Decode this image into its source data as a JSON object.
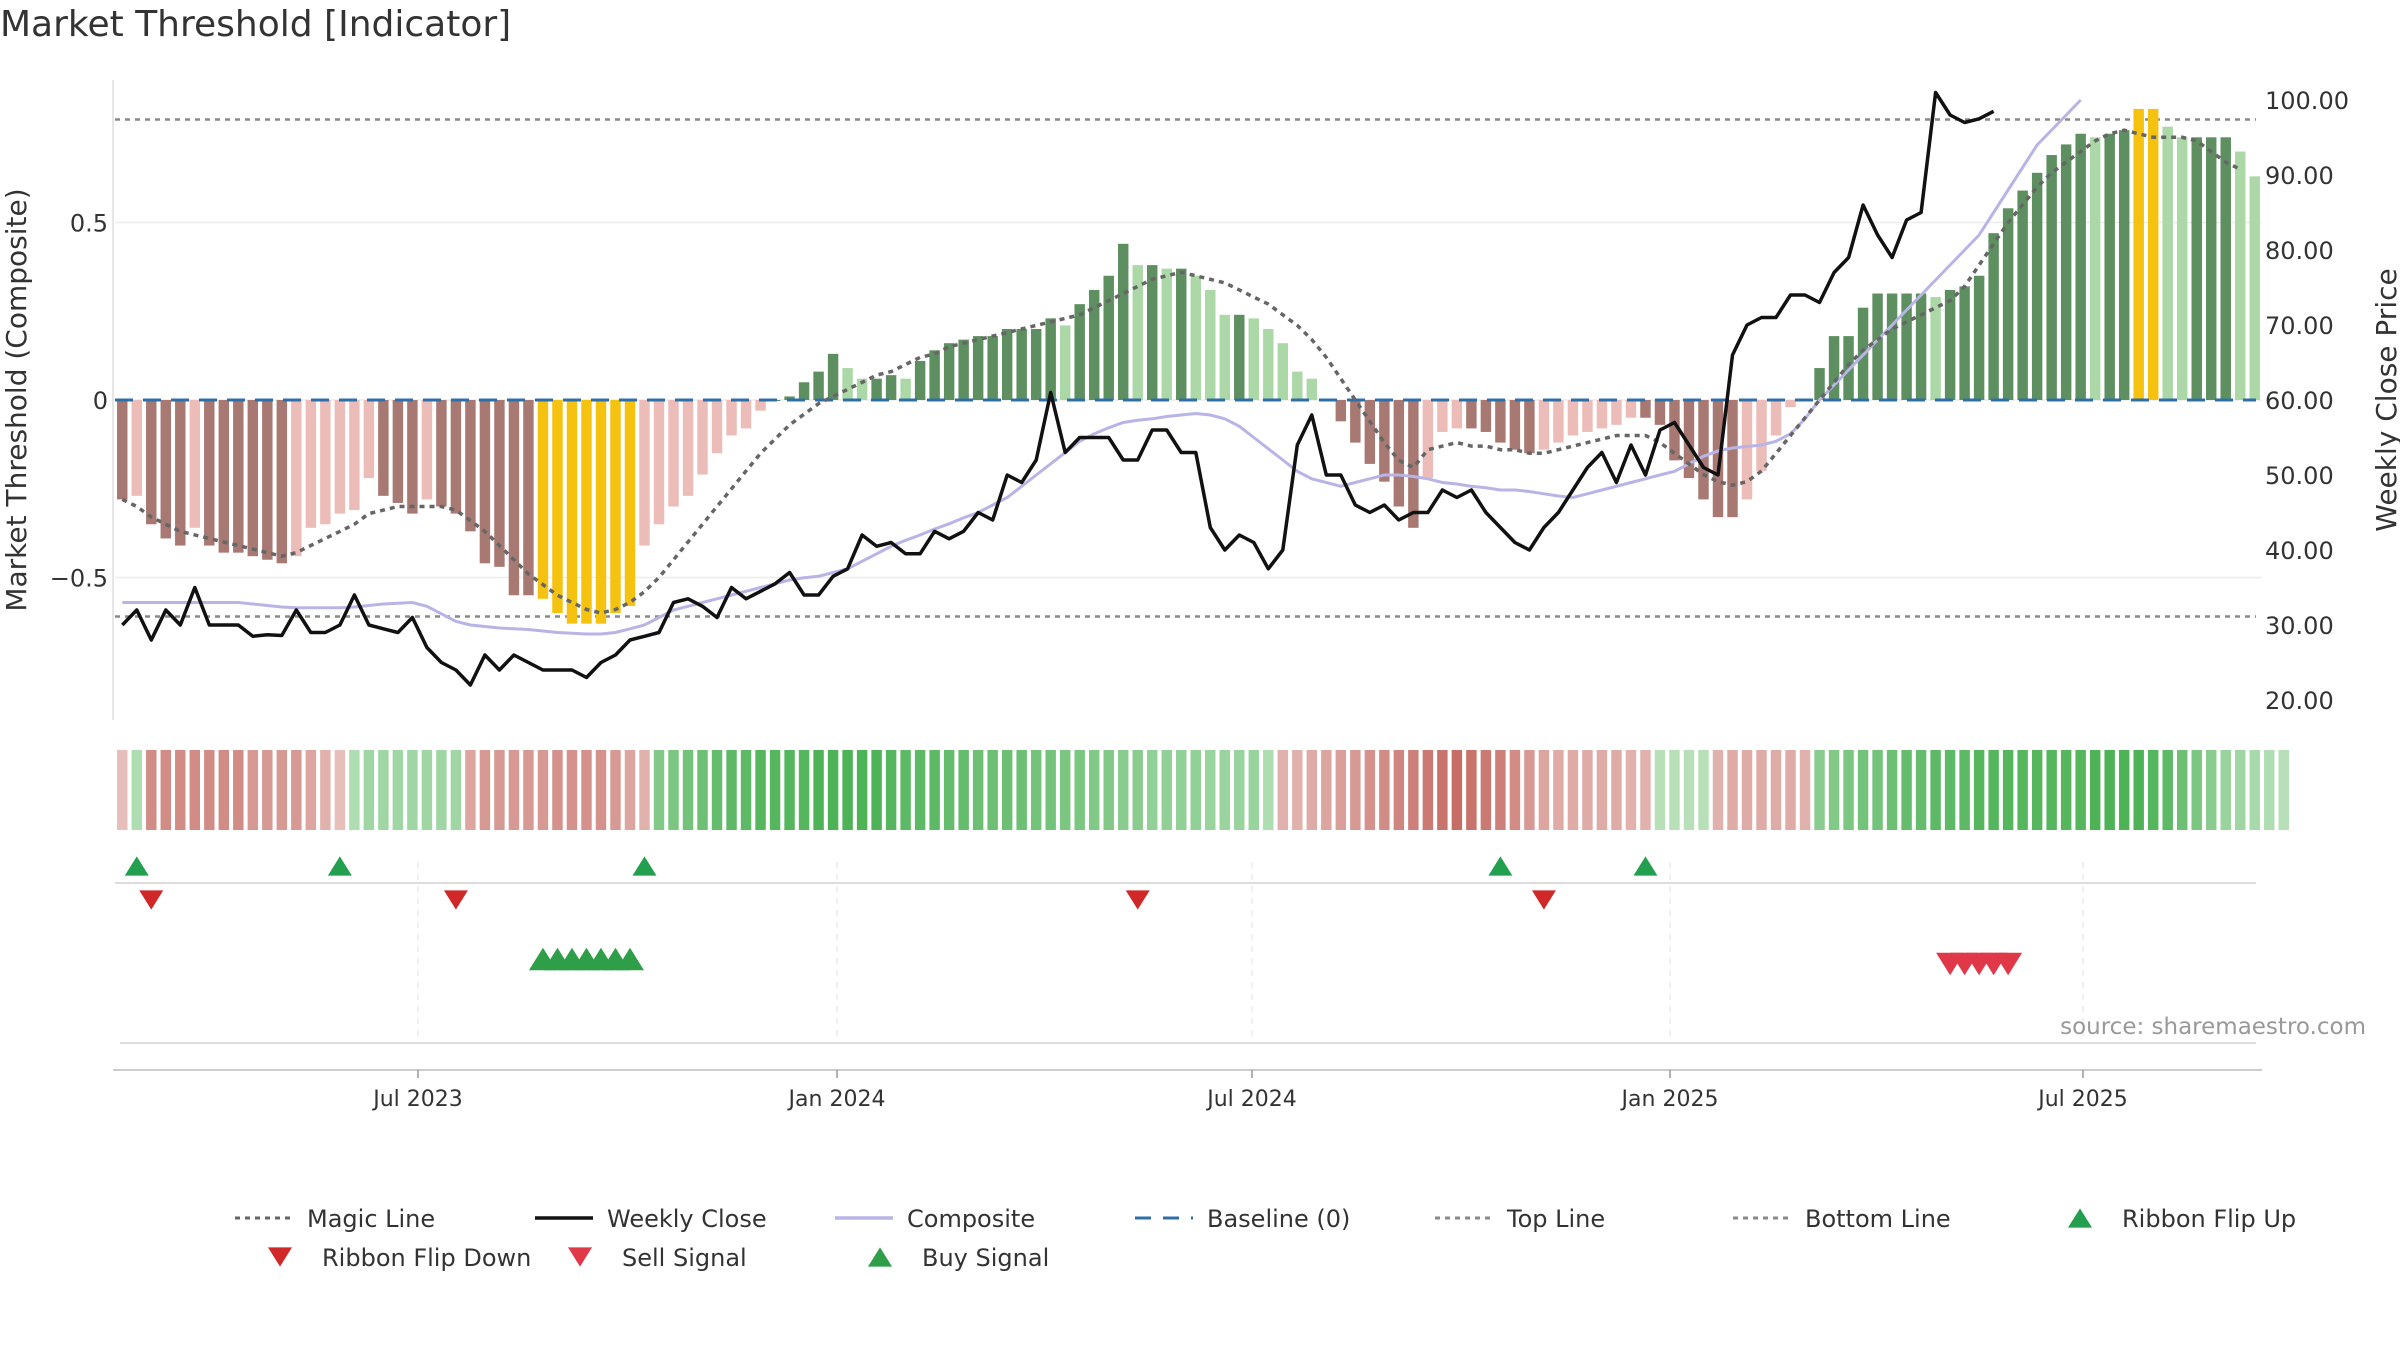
{
  "title": "Market Threshold [Indicator]",
  "source_text": "source: sharemaestro.com",
  "axes": {
    "y_left_label": "Market Threshold (Composite)",
    "y_right_label": "Weekly Close Price",
    "y_left_ticks": [
      "0.5",
      "0",
      "−0.5"
    ],
    "y_right_ticks": [
      "100.00",
      "90.00",
      "80.00",
      "70.00",
      "60.00",
      "50.00",
      "40.00",
      "30.00",
      "20.00"
    ],
    "x_ticks": [
      "Jul 2023",
      "Jan 2024",
      "Jul 2024",
      "Jan 2025",
      "Jul 2025"
    ]
  },
  "legend": [
    {
      "label": "Magic Line",
      "icon": "dotted-line",
      "color": "#666666"
    },
    {
      "label": "Weekly Close",
      "icon": "solid-line",
      "color": "#111111"
    },
    {
      "label": "Composite",
      "icon": "solid-line",
      "color": "#b8b4e6"
    },
    {
      "label": "Baseline (0)",
      "icon": "dashed-line",
      "color": "#2f6fa8"
    },
    {
      "label": "Top Line",
      "icon": "dotted-line",
      "color": "#888888"
    },
    {
      "label": "Bottom Line",
      "icon": "dotted-line",
      "color": "#888888"
    },
    {
      "label": "Ribbon Flip Up",
      "icon": "triangle-up",
      "color": "#22a050"
    },
    {
      "label": "Ribbon Flip Down",
      "icon": "triangle-down",
      "color": "#d02828"
    },
    {
      "label": "Sell Signal",
      "icon": "triangle-down",
      "color": "#e03848"
    },
    {
      "label": "Buy Signal",
      "icon": "triangle-up",
      "color": "#2e9e48"
    }
  ],
  "chart_data": {
    "type": "bar",
    "x_start": "2023-02-27",
    "x_interval": "weekly",
    "x_ticks": [
      "Jul 2023",
      "Jan 2024",
      "Jul 2024",
      "Jan 2025",
      "Jul 2025"
    ],
    "ylim_left": [
      -0.9,
      0.9
    ],
    "ylim_right": [
      20,
      105
    ],
    "top_line": 0.79,
    "bottom_line": -0.61,
    "baseline": 0,
    "grid": true,
    "legend_position": "bottom",
    "colors": {
      "bar_neg_dark": "#a87872",
      "bar_neg_light": "#ecbcb8",
      "bar_pos_dark": "#5e8f60",
      "bar_pos_light": "#acd8a8",
      "bar_extreme": "#f5c210",
      "magic_line": "#666666",
      "weekly_close": "#111111",
      "composite": "#b8b4e6",
      "baseline": "#2f6fa8",
      "threshold_lines": "#888888",
      "ribbon_flip_up": "#22a050",
      "ribbon_flip_down": "#d02828",
      "sell_signal": "#e03848",
      "buy_signal": "#2e9e48"
    },
    "series": [
      {
        "name": "Market Threshold (Composite)",
        "style": "bar",
        "values": [
          -0.28,
          -0.27,
          -0.35,
          -0.39,
          -0.41,
          -0.36,
          -0.41,
          -0.43,
          -0.43,
          -0.44,
          -0.45,
          -0.46,
          -0.44,
          -0.36,
          -0.35,
          -0.32,
          -0.31,
          -0.22,
          -0.27,
          -0.29,
          -0.32,
          -0.28,
          -0.3,
          -0.32,
          -0.37,
          -0.46,
          -0.47,
          -0.55,
          -0.55,
          -0.56,
          -0.6,
          -0.63,
          -0.63,
          -0.63,
          -0.6,
          -0.58,
          -0.41,
          -0.35,
          -0.3,
          -0.27,
          -0.21,
          -0.15,
          -0.1,
          -0.08,
          -0.03,
          0.0,
          0.01,
          0.05,
          0.08,
          0.13,
          0.09,
          0.06,
          0.06,
          0.07,
          0.06,
          0.11,
          0.14,
          0.16,
          0.17,
          0.18,
          0.18,
          0.2,
          0.2,
          0.2,
          0.23,
          0.21,
          0.27,
          0.31,
          0.35,
          0.44,
          0.38,
          0.38,
          0.37,
          0.37,
          0.35,
          0.31,
          0.24,
          0.24,
          0.23,
          0.2,
          0.16,
          0.08,
          0.06,
          0.0,
          -0.06,
          -0.12,
          -0.18,
          -0.23,
          -0.3,
          -0.36,
          -0.22,
          -0.09,
          -0.08,
          -0.08,
          -0.09,
          -0.12,
          -0.14,
          -0.15,
          -0.14,
          -0.12,
          -0.1,
          -0.09,
          -0.08,
          -0.07,
          -0.05,
          -0.05,
          -0.07,
          -0.17,
          -0.22,
          -0.28,
          -0.33,
          -0.33,
          -0.28,
          -0.2,
          -0.1,
          -0.02,
          0.0,
          0.09,
          0.18,
          0.18,
          0.26,
          0.3,
          0.3,
          0.3,
          0.3,
          0.29,
          0.31,
          0.32,
          0.35,
          0.47,
          0.54,
          0.59,
          0.64,
          0.69,
          0.72,
          0.75,
          0.74,
          0.75,
          0.76,
          0.82,
          0.82,
          0.77,
          0.74,
          0.74,
          0.74,
          0.74,
          0.7,
          0.63
        ]
      },
      {
        "name": "Magic Line",
        "style": "dotted",
        "values": [
          -0.28,
          -0.3,
          -0.33,
          -0.35,
          -0.37,
          -0.38,
          -0.39,
          -0.4,
          -0.41,
          -0.42,
          -0.43,
          -0.44,
          -0.43,
          -0.41,
          -0.39,
          -0.37,
          -0.35,
          -0.32,
          -0.31,
          -0.3,
          -0.3,
          -0.3,
          -0.3,
          -0.31,
          -0.34,
          -0.37,
          -0.41,
          -0.45,
          -0.49,
          -0.52,
          -0.55,
          -0.57,
          -0.59,
          -0.6,
          -0.59,
          -0.57,
          -0.54,
          -0.5,
          -0.45,
          -0.4,
          -0.35,
          -0.3,
          -0.25,
          -0.2,
          -0.15,
          -0.11,
          -0.07,
          -0.04,
          -0.01,
          0.01,
          0.03,
          0.05,
          0.07,
          0.08,
          0.1,
          0.12,
          0.13,
          0.15,
          0.16,
          0.17,
          0.18,
          0.19,
          0.2,
          0.21,
          0.22,
          0.23,
          0.24,
          0.26,
          0.28,
          0.3,
          0.32,
          0.34,
          0.35,
          0.36,
          0.35,
          0.34,
          0.33,
          0.31,
          0.29,
          0.27,
          0.24,
          0.21,
          0.17,
          0.12,
          0.06,
          0.0,
          -0.06,
          -0.12,
          -0.17,
          -0.19,
          -0.14,
          -0.13,
          -0.12,
          -0.13,
          -0.13,
          -0.14,
          -0.14,
          -0.15,
          -0.15,
          -0.14,
          -0.13,
          -0.12,
          -0.11,
          -0.1,
          -0.1,
          -0.1,
          -0.12,
          -0.15,
          -0.18,
          -0.21,
          -0.23,
          -0.24,
          -0.23,
          -0.2,
          -0.15,
          -0.1,
          -0.05,
          0.0,
          0.05,
          0.1,
          0.14,
          0.17,
          0.2,
          0.22,
          0.24,
          0.26,
          0.28,
          0.32,
          0.38,
          0.44,
          0.5,
          0.55,
          0.6,
          0.64,
          0.67,
          0.7,
          0.73,
          0.75,
          0.76,
          0.75,
          0.74,
          0.74,
          0.74,
          0.73,
          0.7,
          0.67,
          0.65
        ]
      },
      {
        "name": "Weekly Close",
        "style": "solid",
        "values": [
          30,
          32,
          28,
          32,
          30,
          35,
          30,
          30,
          30,
          28.5,
          28.7,
          28.6,
          32,
          29,
          29,
          30,
          34,
          30,
          29.5,
          29,
          31,
          27,
          25,
          24,
          22,
          26,
          24,
          26,
          25,
          24,
          24,
          24,
          23,
          25,
          26,
          28,
          28.5,
          29,
          33,
          33.5,
          32.5,
          31,
          35,
          33.5,
          34.5,
          35.5,
          37,
          34,
          34,
          36.5,
          37.5,
          42,
          40.5,
          41,
          39.5,
          39.5,
          42.5,
          41.5,
          42.5,
          45,
          44,
          50,
          49,
          52,
          61,
          53,
          55,
          55,
          55,
          52,
          52,
          56,
          56,
          53,
          53,
          43,
          40,
          42,
          41,
          37.5,
          40,
          54,
          58,
          50,
          50,
          46,
          45,
          46,
          44,
          45,
          45,
          48,
          47,
          48,
          45,
          43,
          41,
          40,
          43,
          45,
          48,
          51,
          53,
          49,
          54,
          50,
          56,
          57,
          54,
          51,
          50,
          66,
          70,
          71,
          71,
          74,
          74,
          73,
          77,
          79,
          86,
          82,
          79,
          84,
          85,
          101,
          98,
          97,
          97.5,
          98.5
        ]
      },
      {
        "name": "Composite",
        "style": "solid",
        "values": [
          33,
          33,
          33,
          33,
          33,
          33,
          33,
          33,
          33,
          32.8,
          32.6,
          32.4,
          32.3,
          32.3,
          32.3,
          32.3,
          32.4,
          32.6,
          32.8,
          32.9,
          33,
          32.5,
          31.5,
          30.5,
          30,
          29.8,
          29.6,
          29.5,
          29.4,
          29.2,
          29,
          28.9,
          28.8,
          28.8,
          29,
          29.5,
          30,
          31,
          32,
          32.5,
          33,
          33.5,
          34,
          34.5,
          35,
          35.5,
          36,
          36.3,
          36.5,
          37,
          37.5,
          38.5,
          39.5,
          40.5,
          41.3,
          42,
          42.8,
          43.5,
          44.3,
          45,
          46,
          47,
          48.5,
          50,
          51.5,
          53,
          54.5,
          55.5,
          56.3,
          57,
          57.3,
          57.5,
          57.8,
          58,
          58.2,
          58,
          57.5,
          56.5,
          55,
          53.5,
          52,
          50.5,
          49.5,
          49,
          48.5,
          49,
          49.5,
          50,
          50,
          49.8,
          49.5,
          49,
          48.8,
          48.5,
          48.3,
          48,
          48,
          47.8,
          47.5,
          47.2,
          47,
          47.5,
          48,
          48.5,
          49,
          49.5,
          50,
          50.5,
          51.5,
          52.5,
          53.2,
          53.6,
          53.8,
          54,
          54.5,
          55.5,
          57.5,
          60,
          62,
          64,
          66,
          68,
          70,
          72,
          74,
          76,
          78,
          80,
          82,
          85,
          88,
          91,
          94,
          96,
          98,
          100
        ]
      }
    ],
    "ribbon": [
      -0.2,
      0.3,
      -0.6,
      -0.6,
      -0.6,
      -0.6,
      -0.6,
      -0.6,
      -0.6,
      -0.5,
      -0.5,
      -0.5,
      -0.5,
      -0.4,
      -0.3,
      -0.2,
      0.3,
      0.4,
      0.4,
      0.4,
      0.4,
      0.4,
      0.4,
      0.4,
      -0.4,
      -0.5,
      -0.5,
      -0.5,
      -0.5,
      -0.5,
      -0.55,
      -0.55,
      -0.55,
      -0.55,
      -0.5,
      -0.4,
      -0.3,
      0.6,
      0.65,
      0.7,
      0.75,
      0.8,
      0.85,
      0.85,
      0.9,
      0.9,
      0.9,
      0.9,
      0.95,
      0.95,
      0.95,
      0.95,
      0.95,
      0.9,
      0.85,
      0.85,
      0.85,
      0.8,
      0.8,
      0.75,
      0.75,
      0.75,
      0.75,
      0.7,
      0.7,
      0.65,
      0.65,
      0.6,
      0.6,
      0.55,
      0.55,
      0.5,
      0.5,
      0.5,
      0.5,
      0.45,
      0.45,
      0.45,
      0.45,
      0.3,
      -0.3,
      -0.3,
      -0.35,
      -0.4,
      -0.45,
      -0.5,
      -0.55,
      -0.6,
      -0.65,
      -0.7,
      -0.75,
      -0.8,
      -0.85,
      -0.8,
      -0.75,
      -0.7,
      -0.6,
      -0.5,
      -0.4,
      -0.35,
      -0.35,
      -0.35,
      -0.35,
      -0.35,
      -0.3,
      -0.3,
      0.25,
      0.25,
      0.25,
      0.25,
      -0.3,
      -0.35,
      -0.35,
      -0.35,
      -0.35,
      -0.35,
      -0.3,
      0.55,
      0.6,
      0.65,
      0.7,
      0.7,
      0.75,
      0.8,
      0.8,
      0.85,
      0.85,
      0.85,
      0.9,
      0.9,
      0.9,
      0.9,
      0.9,
      0.9,
      0.9,
      0.9,
      0.95,
      0.95,
      0.95,
      0.95,
      0.9,
      0.85,
      0.75,
      0.65,
      0.55,
      0.45,
      0.4,
      0.35,
      0.3,
      0.25
    ],
    "ribbon_flip_up_at": [
      1,
      15,
      36,
      95,
      105
    ],
    "ribbon_flip_down_at": [
      2,
      23,
      70,
      98
    ],
    "buy_signals_at": [
      29,
      30,
      31,
      32,
      33,
      34,
      35
    ],
    "sell_signals_at": [
      126,
      127,
      128,
      129,
      130
    ]
  }
}
